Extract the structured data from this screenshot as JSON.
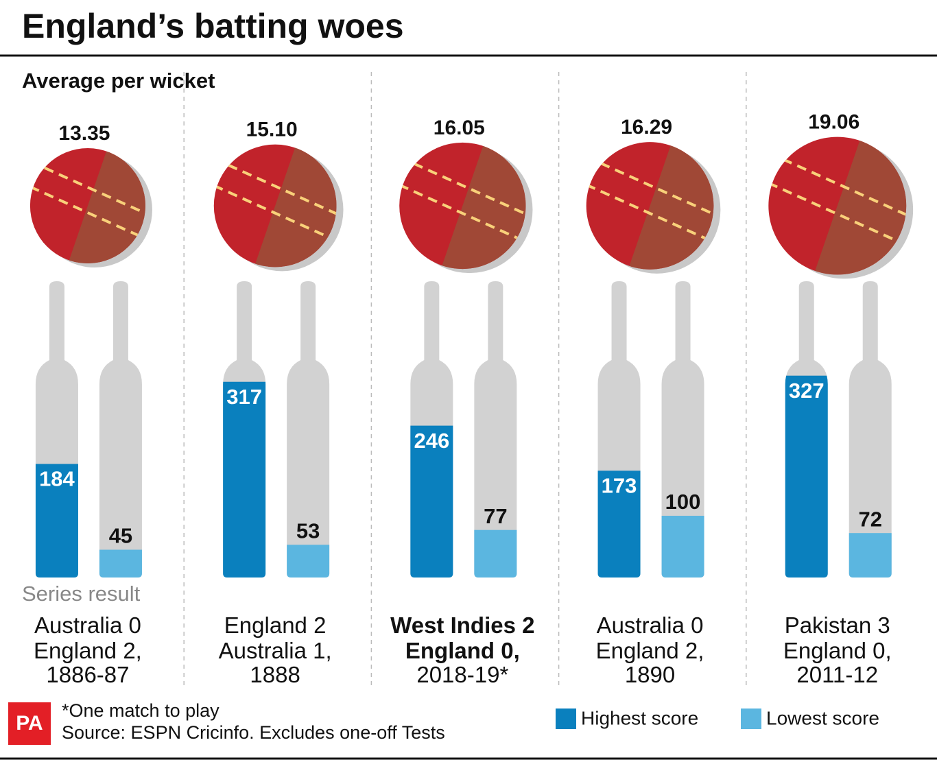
{
  "chart_data": {
    "type": "bat",
    "title": "England’s batting woes",
    "subtitle": "Average per wicket",
    "averages": {
      "values": [
        13.35,
        15.1,
        16.05,
        16.29,
        19.06
      ],
      "value_labels": [
        "13.35",
        "15.10",
        "16.05",
        "16.29",
        "19.06"
      ]
    },
    "series_label": "Series result",
    "categories": [
      "Australia 0\nEngland 2,",
      "England 2\nAustralia 1,",
      "West Indies 2\nEngland 0,",
      "Australia 0\nEngland 2,",
      "Pakistan 3\nEngland 0,"
    ],
    "dates": [
      "1886-87",
      "1888",
      "2018-19*",
      "1890",
      "2011-12"
    ],
    "bold_category": 2,
    "series": [
      {
        "name": "Highest score",
        "color": "#0a80be",
        "values": [
          184,
          317,
          246,
          173,
          327
        ]
      },
      {
        "name": "Lowest score",
        "color": "#5bb6e0",
        "values": [
          45,
          53,
          77,
          100,
          72
        ]
      }
    ],
    "ylim": [
      0,
      480
    ],
    "note": "*One match to play",
    "source": "Source: ESPN Cricinfo. Excludes one-off Tests",
    "logo": "PA"
  }
}
